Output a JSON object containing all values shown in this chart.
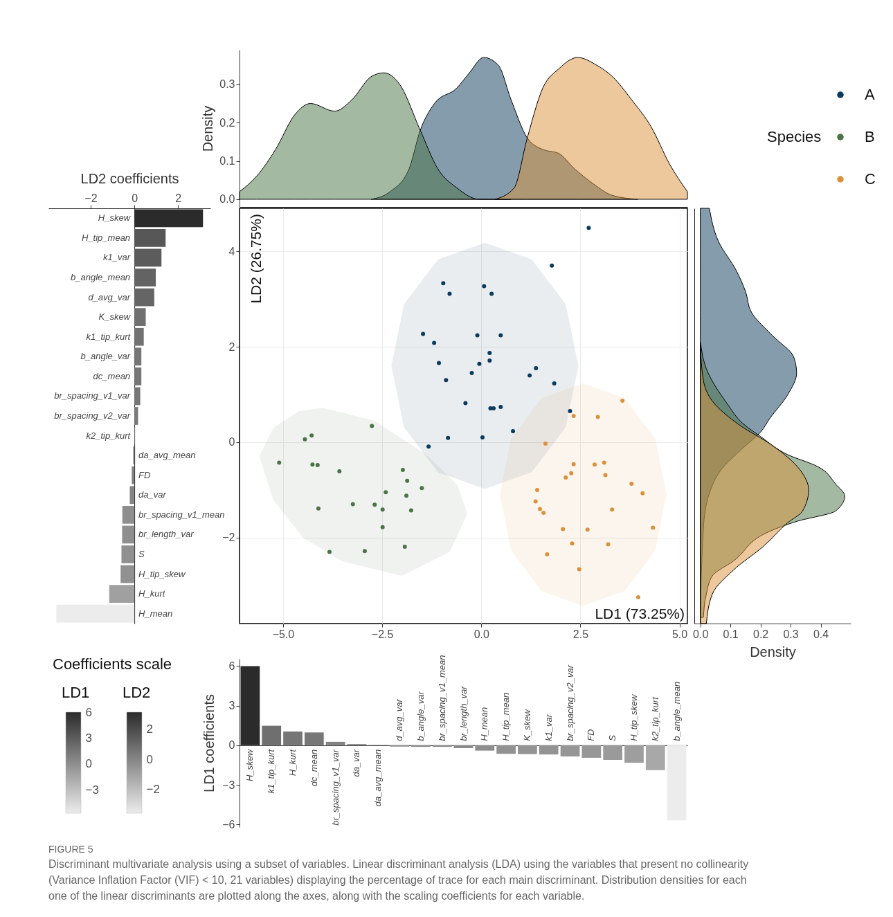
{
  "chart_data": [
    {
      "type": "area",
      "ylabel": "Density",
      "xlim": [
        -6.1,
        5.2
      ],
      "ylim": [
        -0.02,
        0.39
      ],
      "yticks": [
        {
          "value": 0,
          "label": "0.0"
        },
        {
          "value": 0.1,
          "label": "0.1"
        },
        {
          "value": 0.2,
          "label": "0.2"
        },
        {
          "value": 0.3,
          "label": "0.3"
        }
      ],
      "tick_labels": "y",
      "series": [
        {
          "color": "#0b3a5c",
          "x": [
            -2.78,
            -2.3,
            -1.82,
            -1.54,
            -1.18,
            -0.62,
            -0.3,
            0.06,
            0.43,
            0.75,
            1.16,
            1.55,
            1.95,
            2.35,
            2.83,
            3.31,
            3.95
          ],
          "values": [
            0,
            0.02,
            0.08,
            0.18,
            0.25,
            0.29,
            0.33,
            0.37,
            0.35,
            0.26,
            0.16,
            0.13,
            0.12,
            0.08,
            0.04,
            0.01,
            0
          ]
        },
        {
          "color": "#4a7446",
          "x": [
            -6.1,
            -5.67,
            -5.19,
            -4.71,
            -4.31,
            -3.7,
            -3.26,
            -2.78,
            -2.46,
            -2.06,
            -1.54,
            -1.1,
            -0.62,
            -0.06,
            0.75
          ],
          "values": [
            0.02,
            0.06,
            0.13,
            0.22,
            0.25,
            0.23,
            0.26,
            0.32,
            0.33,
            0.3,
            0.18,
            0.08,
            0.03,
            0,
            0
          ]
        },
        {
          "color": "#da923a",
          "x": [
            0.35,
            0.83,
            1.16,
            1.55,
            1.95,
            2.43,
            2.91,
            3.31,
            3.79,
            4.28,
            4.76,
            5.2
          ],
          "values": [
            0,
            0.03,
            0.16,
            0.29,
            0.34,
            0.37,
            0.35,
            0.32,
            0.26,
            0.19,
            0.09,
            0.02
          ]
        }
      ]
    },
    {
      "type": "bar",
      "orientation": "horizontal",
      "xlabel": "LD2 coefficients",
      "xlim": [
        -3.93,
        3.48
      ],
      "xticks": [
        {
          "value": -2,
          "label": "−2"
        },
        0,
        2
      ],
      "clabel": "LD2",
      "clim": [
        -3.57,
        3.14
      ],
      "cticks": [
        {
          "value": -2,
          "label": "−2"
        },
        0,
        2
      ],
      "categories": [
        "H_skew",
        "H_tip_mean",
        "k1_var",
        "b_angle_mean",
        "d_avg_var",
        "K_skew",
        "k1_tip_kurt",
        "b_angle_var",
        "dc_mean",
        "br_spacing_v1_var",
        "br_spacing_v2_var",
        "k2_tip_kurt",
        "da_avg_mean",
        "FD",
        "da_var",
        "br_spacing_v1_mean",
        "br_length_var",
        "S",
        "H_tip_skew",
        "H_kurt",
        "H_mean"
      ],
      "values": [
        3.14,
        1.43,
        1.24,
        0.98,
        0.91,
        0.52,
        0.43,
        0.32,
        0.32,
        0.27,
        0.17,
        0.02,
        -0.05,
        -0.12,
        -0.21,
        -0.55,
        -0.56,
        -0.59,
        -0.63,
        -1.15,
        -3.57
      ]
    },
    {
      "type": "scatter",
      "xlabel": "LD1 (73.25%)",
      "ylabel": "LD2 (26.75%)",
      "xlim": [
        -6.1,
        5.2
      ],
      "ylim": [
        -3.8,
        4.9
      ],
      "xticks": [
        {
          "value": -5,
          "label": "−5.0"
        },
        {
          "value": -2.5,
          "label": "−2.5"
        },
        {
          "value": 0,
          "label": "0.0"
        },
        {
          "value": 2.5,
          "label": "2.5"
        },
        {
          "value": 5,
          "label": "5.0"
        }
      ],
      "yticks": [
        {
          "value": -2,
          "label": "−2"
        },
        0,
        2,
        4
      ],
      "grid": true,
      "legend": "top right",
      "legend_title": "Species",
      "series": [
        {
          "type": "area",
          "color": "#0b3a5c",
          "x": [
            2.45,
            2.13,
            1.27,
            0.09,
            -1.09,
            -1.95,
            -2.27,
            -1.95,
            -1.09,
            0.09,
            1.27,
            2.13
          ],
          "values": [
            1.6,
            2.89,
            3.83,
            4.18,
            3.83,
            2.89,
            1.6,
            0.31,
            -0.63,
            -0.98,
            -0.63,
            0.31
          ]
        },
        {
          "type": "area",
          "color": "#4a7446",
          "x": [
            -5.6,
            -5.25,
            -4.6,
            -4.0,
            -2.7,
            -1.4,
            -0.6,
            -0.35,
            -0.8,
            -2.0,
            -3.5,
            -4.5,
            -5.25
          ],
          "values": [
            -0.3,
            0.3,
            0.65,
            0.72,
            0.45,
            -0.25,
            -0.9,
            -1.5,
            -2.3,
            -2.8,
            -2.5,
            -2.0,
            -1.2
          ]
        },
        {
          "type": "area",
          "color": "#da923a",
          "x": [
            4.67,
            4.39,
            3.62,
            2.57,
            1.52,
            0.75,
            0.47,
            0.75,
            1.52,
            2.57,
            3.62,
            4.39
          ],
          "values": [
            -1.1,
            0.07,
            0.92,
            1.23,
            0.92,
            0.07,
            -1.1,
            -2.27,
            -3.12,
            -3.43,
            -3.12,
            -2.27
          ]
        },
        {
          "name": "A",
          "marker": "circle",
          "color": "#0b3a5c",
          "x": [
            2.71,
            1.78,
            -0.96,
            0.07,
            -0.8,
            0.26,
            -1.47,
            -0.1,
            0.49,
            -1.19,
            0.21,
            -1.07,
            -0.05,
            0.21,
            -0.24,
            -0.89,
            1.22,
            1.38,
            1.84,
            -0.4,
            0.23,
            0.31,
            0.49,
            0.8,
            2.24,
            -1.33,
            -0.84,
            0.03
          ],
          "values": [
            4.49,
            3.7,
            3.33,
            3.27,
            3.11,
            3.11,
            2.27,
            2.24,
            2.24,
            2.08,
            1.87,
            1.66,
            1.64,
            1.71,
            1.45,
            1.3,
            1.4,
            1.55,
            1.23,
            0.82,
            0.71,
            0.71,
            0.74,
            0.23,
            0.65,
            -0.09,
            0.09,
            0.1
          ]
        },
        {
          "name": "B",
          "marker": "circle",
          "color": "#4a7446",
          "x": [
            -5.1,
            -4.45,
            -4.28,
            -4.26,
            -4.13,
            -3.58,
            -2.76,
            -4.11,
            -3.24,
            -2.69,
            -2.49,
            -2.41,
            -1.98,
            -1.87,
            -1.5,
            -1.89,
            -1.77,
            -2.49,
            -3.83,
            -2.94,
            -1.93
          ],
          "values": [
            -0.43,
            0.06,
            0.14,
            -0.47,
            -0.48,
            -0.61,
            0.34,
            -1.39,
            -1.3,
            -1.31,
            -1.41,
            -1.05,
            -0.58,
            -0.81,
            -0.96,
            -1.12,
            -1.43,
            -1.78,
            -2.3,
            -2.28,
            -2.19
          ]
        },
        {
          "name": "C",
          "marker": "circle",
          "color": "#da923a",
          "x": [
            3.56,
            2.33,
            2.94,
            1.62,
            2.33,
            2.86,
            3.1,
            2.27,
            2.13,
            3.13,
            3.79,
            4.07,
            1.41,
            1.37,
            1.48,
            1.57,
            3.3,
            2.06,
            2.68,
            4.33,
            2.29,
            3.2,
            1.66,
            2.47,
            3.96
          ],
          "values": [
            0.87,
            0.55,
            0.53,
            -0.03,
            -0.46,
            -0.47,
            -0.43,
            -0.65,
            -0.74,
            -0.69,
            -0.87,
            -1.07,
            -1.0,
            -1.24,
            -1.4,
            -1.48,
            -1.41,
            -1.82,
            -1.83,
            -1.79,
            -2.12,
            -2.14,
            -2.35,
            -2.66,
            -3.25
          ]
        }
      ]
    },
    {
      "type": "area",
      "orientation": "horizontal",
      "xlabel": "Density",
      "xlim": [
        -0.02,
        0.5
      ],
      "ylim": [
        -3.8,
        4.9
      ],
      "xticks": [
        {
          "value": 0,
          "label": "0.0"
        },
        {
          "value": 0.1,
          "label": "0.1"
        },
        {
          "value": 0.2,
          "label": "0.2"
        },
        {
          "value": 0.3,
          "label": "0.3"
        },
        {
          "value": 0.4,
          "label": "0.4"
        }
      ],
      "tick_labels": "x",
      "series": [
        {
          "color": "#0b3a5c",
          "x": [
            4.9,
            4.21,
            3.59,
            3.16,
            2.72,
            2.23,
            1.79,
            1.45,
            0.99,
            0.49,
            0.21,
            -0.13,
            -0.57,
            -1.07,
            -1.81,
            -3.8
          ],
          "values": [
            0.03,
            0.06,
            0.12,
            0.15,
            0.17,
            0.24,
            0.31,
            0.32,
            0.29,
            0.23,
            0.2,
            0.14,
            0.07,
            0.03,
            0.01,
            0
          ]
        },
        {
          "color": "#4a7446",
          "x": [
            2.1,
            1.54,
            0.8,
            0.4,
            0.12,
            -0.26,
            -0.51,
            -0.88,
            -1.13,
            -1.44,
            -1.66,
            -1.87,
            -2.49,
            -2.8,
            -3.18,
            -3.67
          ],
          "values": [
            0,
            0.02,
            0.09,
            0.14,
            0.2,
            0.29,
            0.39,
            0.45,
            0.48,
            0.45,
            0.32,
            0.23,
            0.11,
            0.04,
            0.02,
            0.01
          ]
        },
        {
          "color": "#da923a",
          "x": [
            2.04,
            1.3,
            0.86,
            0.36,
            -0.07,
            -0.57,
            -1.0,
            -1.44,
            -1.69,
            -2.18,
            -2.68,
            -3.18,
            -3.8
          ],
          "values": [
            0,
            0.01,
            0.04,
            0.13,
            0.24,
            0.33,
            0.36,
            0.34,
            0.29,
            0.21,
            0.11,
            0.04,
            0.02
          ]
        }
      ]
    },
    {
      "type": "bar",
      "ylabel": "LD1 coefficients",
      "ylim": [
        -6.2,
        6.55
      ],
      "yticks": [
        {
          "value": -6,
          "label": "−6"
        },
        {
          "value": -3,
          "label": "−3"
        },
        0,
        3,
        6
      ],
      "clabel": "LD1",
      "clim": [
        -5.69,
        6.0
      ],
      "cticks": [
        {
          "value": -3,
          "label": "−3"
        },
        0,
        3,
        6
      ],
      "categories": [
        "H_skew",
        "k1_tip_kurt",
        "H_kurt",
        "dc_mean",
        "br_spacing_v1_var",
        "da_var",
        "da_avg_mean",
        "d_avg_var",
        "b_angle_var",
        "br_spacing_v1_mean",
        "br_length_var",
        "H_mean",
        "H_tip_mean",
        "K_skew",
        "k1_var",
        "br_spacing_v2_var",
        "FD",
        "S",
        "H_tip_skew",
        "k2_tip_kurt",
        "b_angle_mean"
      ],
      "values": [
        6.0,
        1.48,
        1.04,
        0.97,
        0.26,
        0.09,
        0.02,
        -0.1,
        -0.12,
        -0.12,
        -0.22,
        -0.41,
        -0.65,
        -0.67,
        -0.7,
        -0.85,
        -0.95,
        -1.11,
        -1.33,
        -1.89,
        -5.69
      ],
      "annotations": [
        "Coefficients scale",
        "FIGURE 5",
        "Discriminant multivariate analysis using a subset of variables. Linear discriminant analysis (LDA) using the variables that present no collinearity (Variance Inflation Factor (VIF) < 10, 21 variables) displaying the percentage of trace for each main discriminant. Distribution densities for each one of the linear discriminants are plotted along the axes, along with the scaling coefficients for each variable."
      ]
    }
  ]
}
